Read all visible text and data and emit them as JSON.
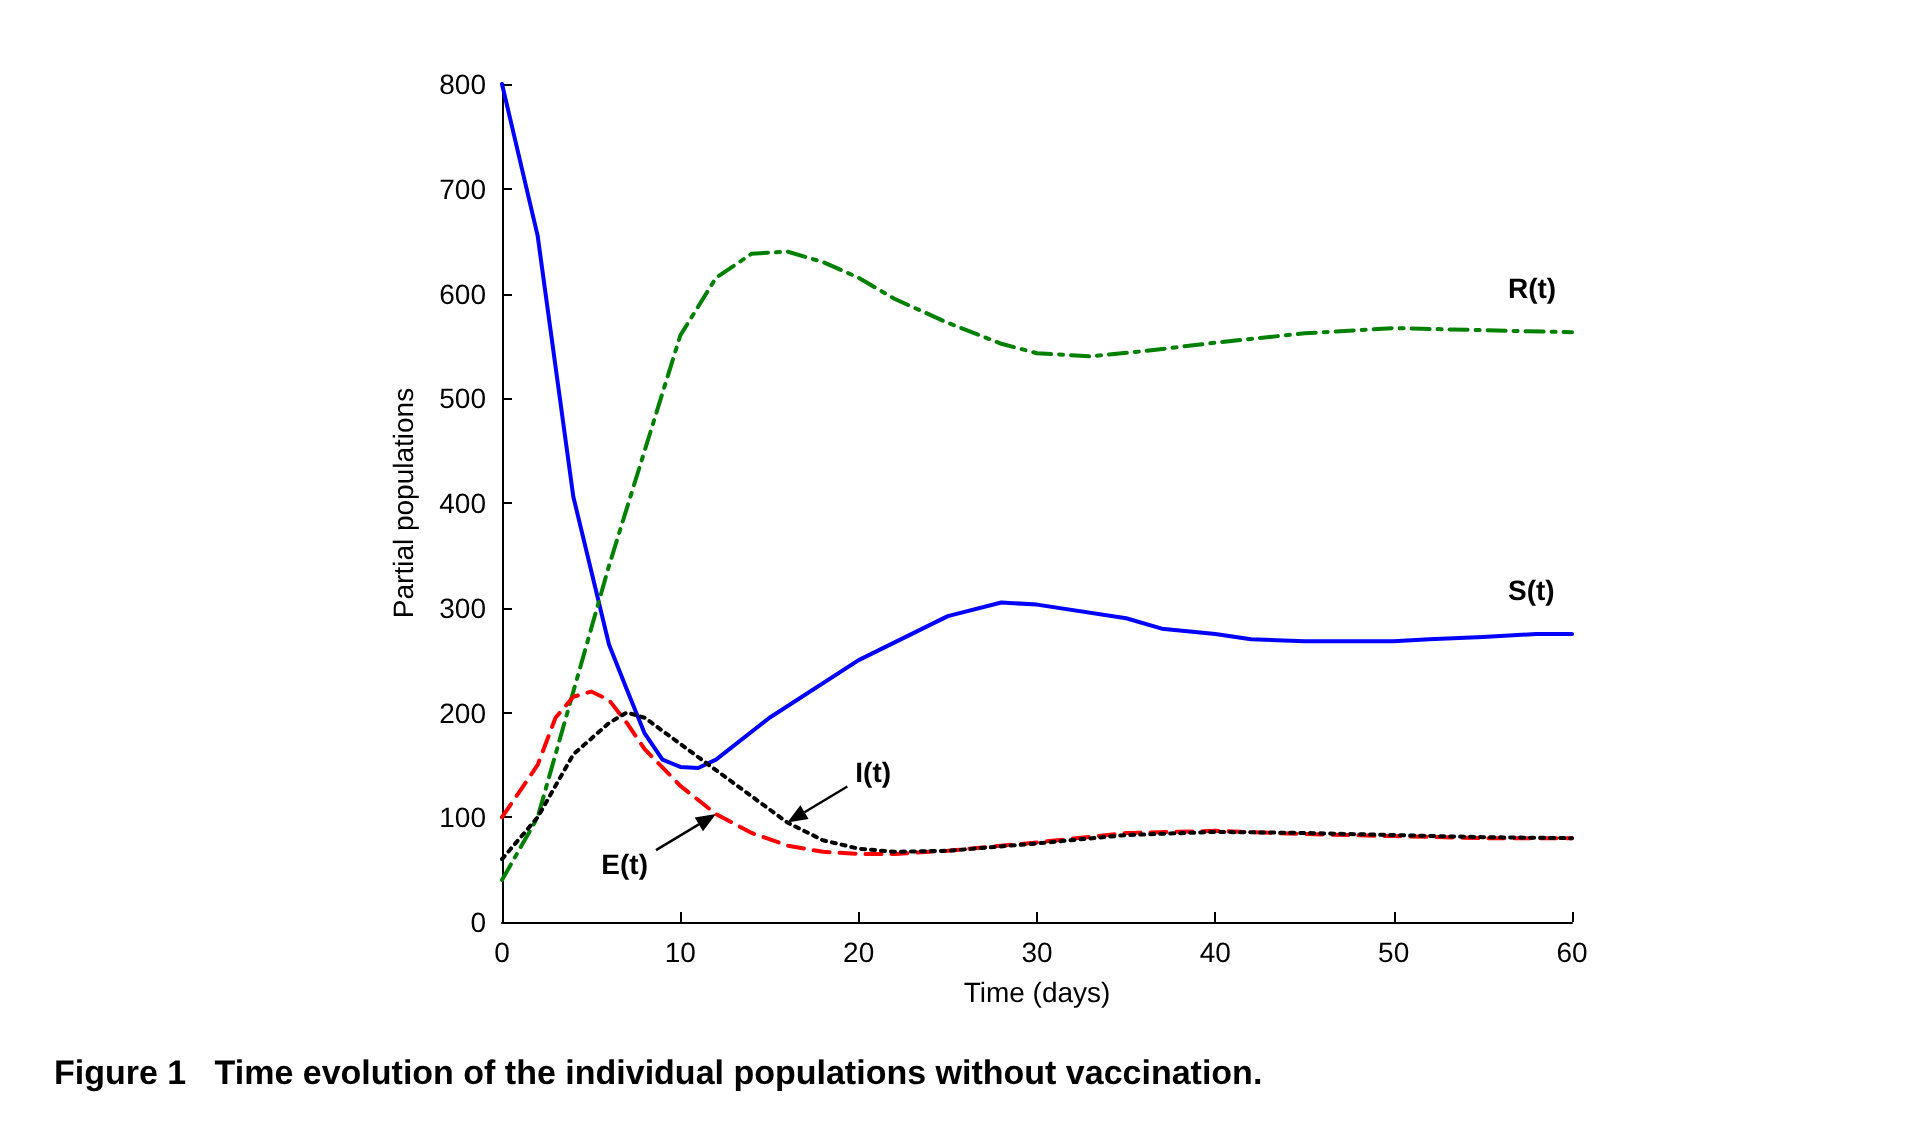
{
  "chart_data": {
    "type": "line",
    "title": "Figure 1   Time evolution of the individual populations without vaccination.",
    "xlabel": "Time (days)",
    "ylabel": "Partial populations",
    "xlim": [
      0,
      60
    ],
    "xticks": [
      0,
      10,
      20,
      30,
      40,
      50,
      60
    ],
    "ylim": [
      0,
      800
    ],
    "yticks": [
      0,
      100,
      200,
      300,
      400,
      500,
      600,
      700,
      800
    ],
    "grid": false,
    "legend": false,
    "marker": "none",
    "series": [
      {
        "name": "S(t)",
        "color": "#0000ff",
        "line_style": "solid",
        "x": [
          0,
          2,
          4,
          6,
          7,
          8,
          9,
          10,
          11,
          12,
          15,
          20,
          25,
          28,
          30,
          35,
          37,
          40,
          42,
          45,
          50,
          52,
          55,
          58,
          60
        ],
        "values": [
          800,
          655,
          406,
          265,
          222,
          180,
          155,
          148,
          147,
          155,
          195,
          250,
          292,
          305,
          303,
          290,
          280,
          275,
          270,
          268,
          268,
          270,
          272,
          275,
          275
        ]
      },
      {
        "name": "R(t)",
        "color": "#008000",
        "line_style": "dashdot",
        "x": [
          0,
          2,
          4,
          6,
          8,
          10,
          12,
          14,
          16,
          18,
          20,
          22,
          25,
          28,
          30,
          33,
          36,
          40,
          45,
          50,
          55,
          60
        ],
        "values": [
          40,
          100,
          220,
          340,
          450,
          560,
          615,
          638,
          640,
          630,
          615,
          595,
          572,
          552,
          543,
          540,
          545,
          553,
          562,
          567,
          565,
          563
        ]
      },
      {
        "color": "#ff0000",
        "line_style": "dashed",
        "x": [
          0,
          2,
          3,
          4,
          5,
          6,
          7,
          8,
          10,
          12,
          14,
          16,
          18,
          20,
          22,
          25,
          30,
          35,
          40,
          45,
          50,
          55,
          60
        ],
        "values": [
          100,
          150,
          195,
          215,
          220,
          212,
          190,
          165,
          130,
          103,
          85,
          73,
          67,
          65,
          65,
          68,
          76,
          85,
          87,
          84,
          82,
          80,
          80
        ]
      },
      {
        "color": "#000000",
        "line_style": "dotted",
        "x": [
          0,
          2,
          4,
          6,
          7,
          8,
          10,
          12,
          14,
          16,
          18,
          20,
          22,
          25,
          30,
          35,
          40,
          45,
          50,
          55,
          60
        ],
        "values": [
          60,
          100,
          160,
          190,
          200,
          195,
          170,
          145,
          120,
          95,
          78,
          70,
          67,
          68,
          75,
          83,
          86,
          85,
          83,
          81,
          80
        ]
      }
    ],
    "annotations": [
      {
        "text": "I(t)",
        "x": 16,
        "y": 95
      },
      {
        "text": "E(t)",
        "x": 12,
        "y": 103
      }
    ]
  }
}
